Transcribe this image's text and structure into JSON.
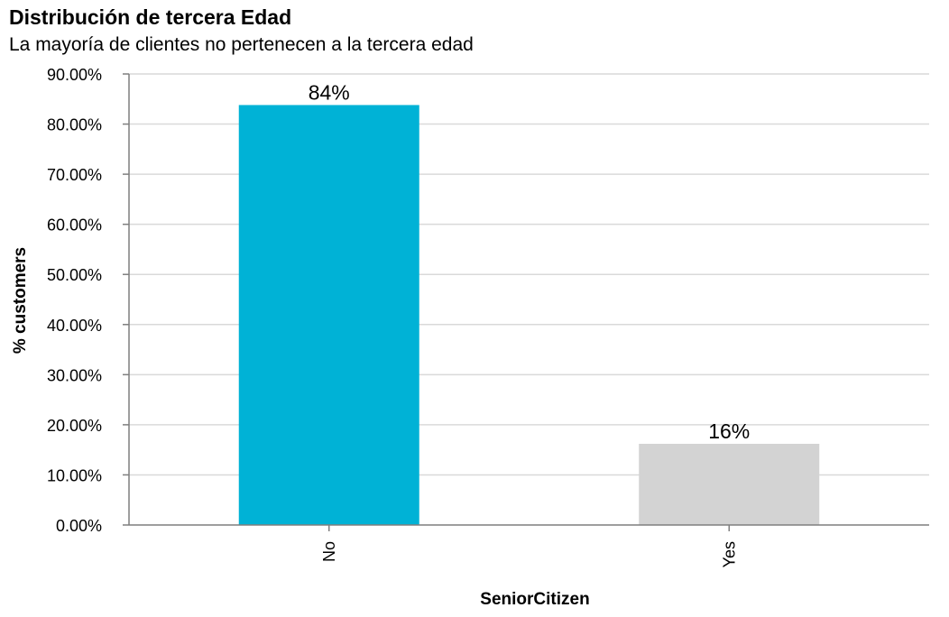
{
  "chart_data": {
    "type": "bar",
    "title": "Distribución de tercera Edad",
    "subtitle": "La mayoría de clientes no pertenecen a la tercera edad",
    "xlabel": "SeniorCitizen",
    "ylabel": "% customers",
    "categories": [
      "No",
      "Yes"
    ],
    "values": [
      83.8,
      16.2
    ],
    "data_labels": [
      "84%",
      "16%"
    ],
    "ylim": [
      0,
      90
    ],
    "yticks": [
      0,
      10,
      20,
      30,
      40,
      50,
      60,
      70,
      80,
      90
    ],
    "ytick_labels": [
      "0.00%",
      "10.00%",
      "20.00%",
      "30.00%",
      "40.00%",
      "50.00%",
      "60.00%",
      "70.00%",
      "80.00%",
      "90.00%"
    ],
    "grid": true,
    "bar_colors": [
      "#00b2d6",
      "#d3d3d3"
    ],
    "grid_color": "#d9d9d9",
    "axis_color": "#7f7f7f"
  }
}
